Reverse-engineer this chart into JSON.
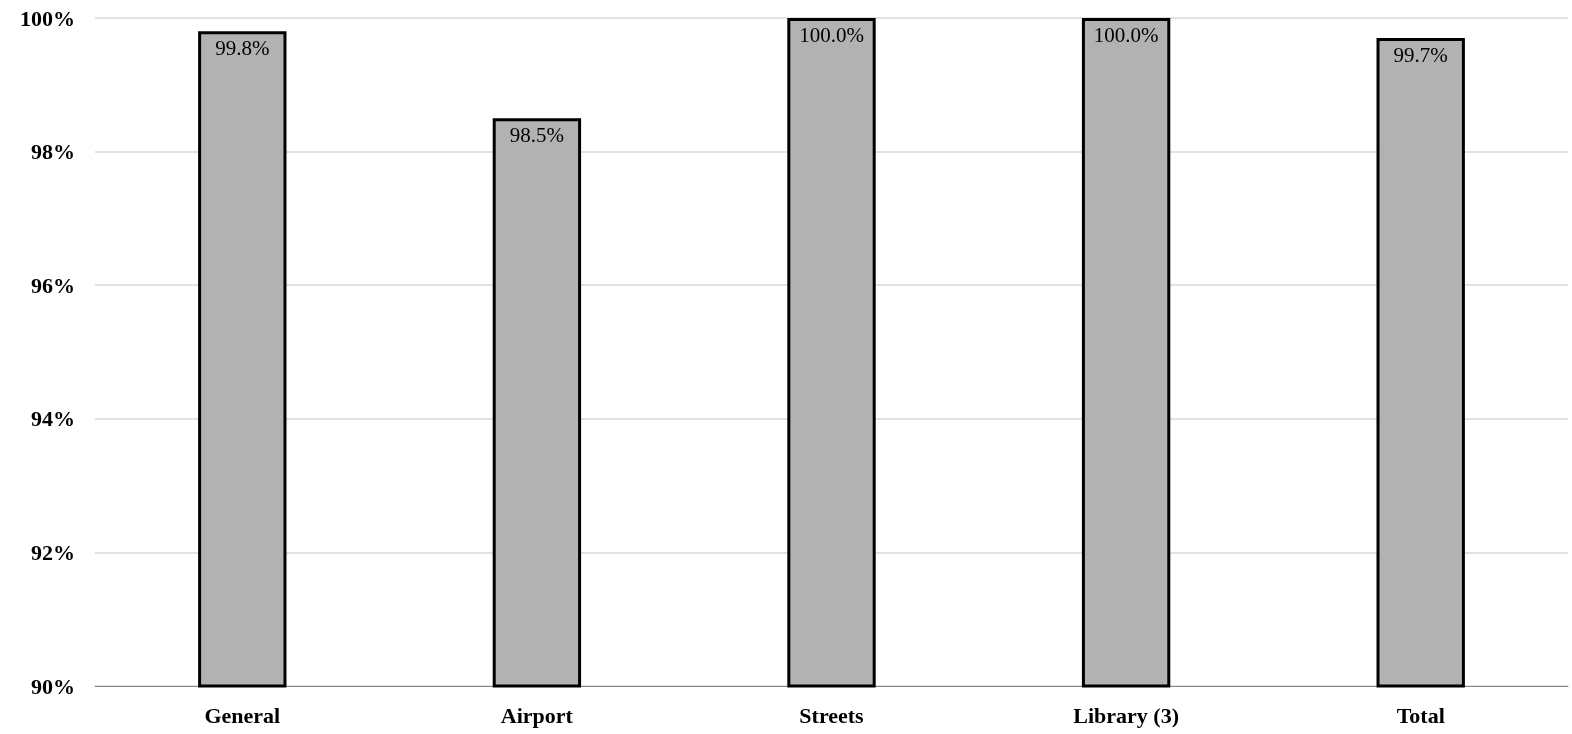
{
  "chart_data": {
    "type": "bar",
    "categories": [
      "General",
      "Airport",
      "Streets",
      "Library (3)",
      "Total"
    ],
    "values": [
      99.8,
      98.5,
      100.0,
      100.0,
      99.7
    ],
    "value_labels": [
      "99.8%",
      "98.5%",
      "100.0%",
      "100.0%",
      "99.7%"
    ],
    "color": "#b2b2b2",
    "ylim": [
      90,
      100
    ],
    "yticks": [
      {
        "value": 90,
        "label": "90%"
      },
      {
        "value": 92,
        "label": "92%"
      },
      {
        "value": 94,
        "label": "94%"
      },
      {
        "value": 96,
        "label": "96%"
      },
      {
        "value": 98,
        "label": "98%"
      },
      {
        "value": 100,
        "label": "100%"
      }
    ],
    "grid": "y"
  }
}
